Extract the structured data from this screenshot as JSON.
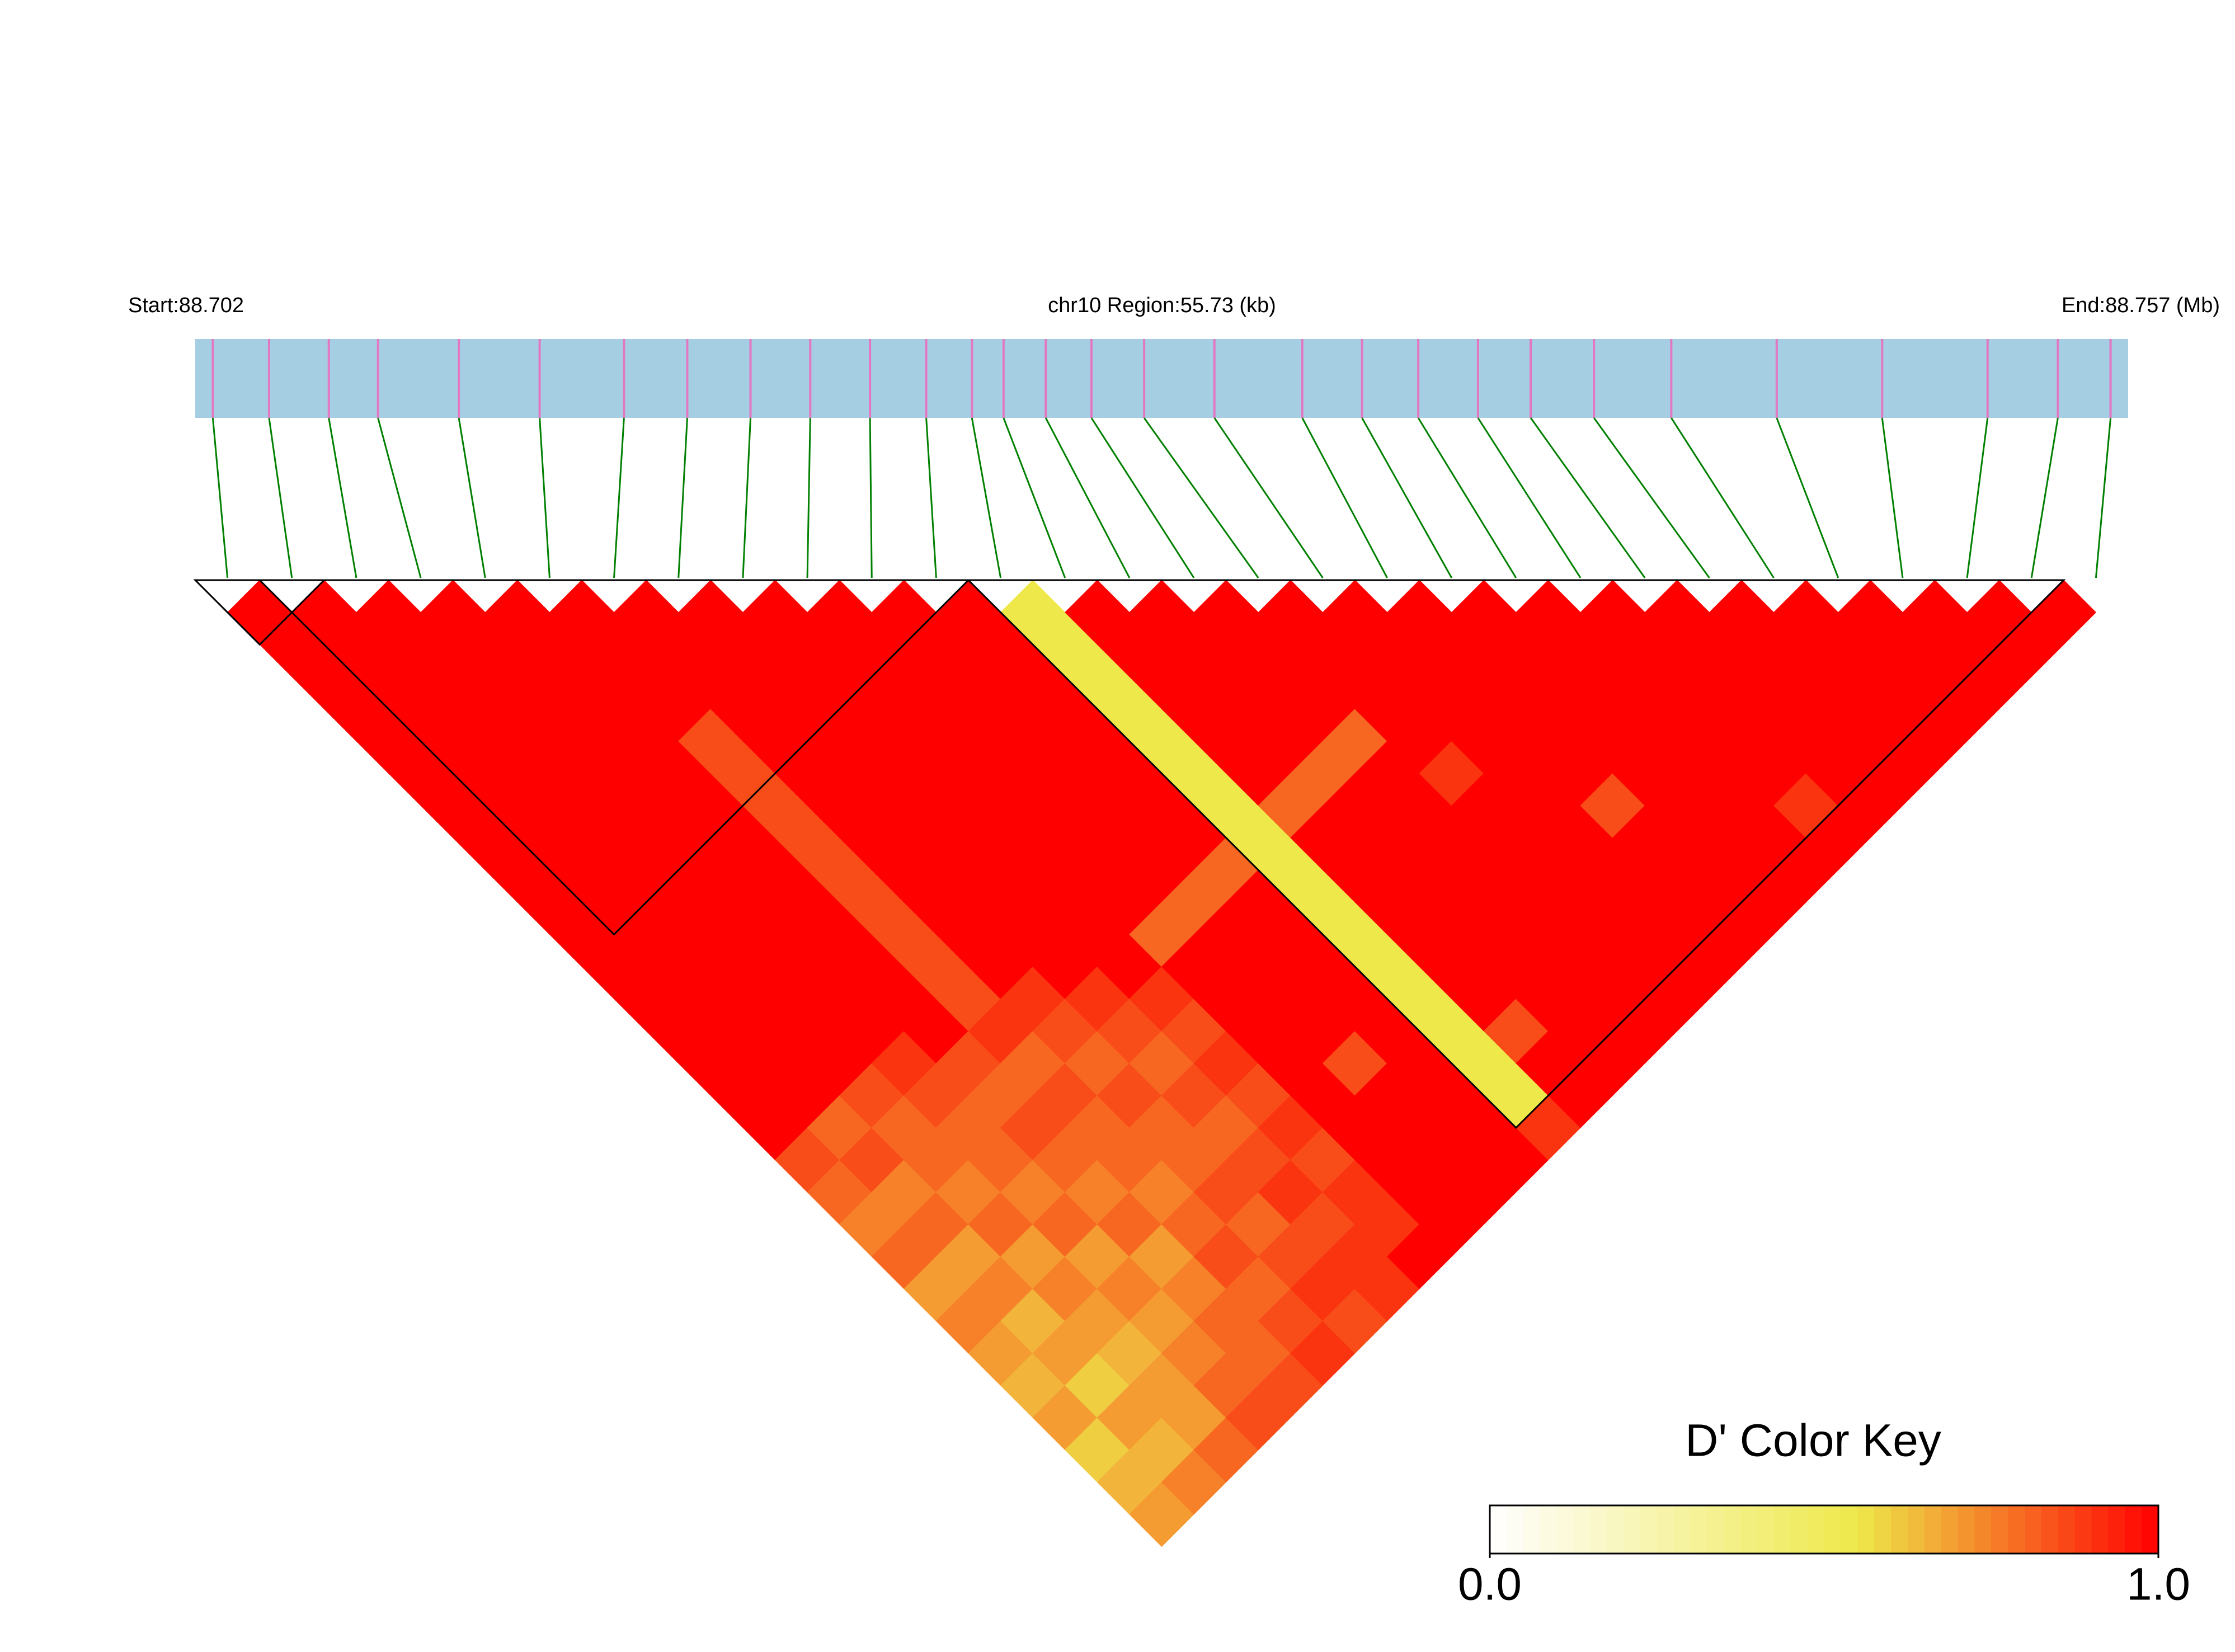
{
  "chart_data": {
    "type": "ld_heatmap",
    "title": "chr10 Region:55.73 (kb)",
    "xlim": [
      {
        "value": 88.702,
        "label": "Start:88.702"
      },
      {
        "value": 88.757,
        "label": "End:88.757 (Mb)"
      }
    ],
    "positions": [
      88.7025,
      88.7041,
      88.7058,
      88.7072,
      88.7095,
      88.7118,
      88.7142,
      88.716,
      88.7178,
      88.7195,
      88.7212,
      88.7228,
      88.7241,
      88.725,
      88.7262,
      88.7275,
      88.729,
      88.731,
      88.7335,
      88.7352,
      88.7368,
      88.7385,
      88.74,
      88.7418,
      88.744,
      88.747,
      88.75,
      88.753,
      88.755,
      88.7565
    ],
    "dprime": [
      [
        1,
        1,
        1,
        1,
        1,
        1,
        1,
        1,
        1,
        1,
        1,
        1,
        1,
        1,
        1,
        1,
        1,
        0.85,
        0.8,
        0.75,
        0.8,
        0.7,
        0.75,
        0.7,
        0.65,
        0.7,
        0.6,
        0.65,
        0.7
      ],
      [
        1,
        1,
        1,
        1,
        1,
        1,
        1,
        1,
        1,
        1,
        1,
        1,
        1,
        1,
        1,
        1,
        0.8,
        0.85,
        0.75,
        0.8,
        0.7,
        0.75,
        0.65,
        0.7,
        0.6,
        0.7,
        0.65,
        0.75
      ],
      [
        1,
        1,
        1,
        1,
        1,
        1,
        1,
        1,
        1,
        1,
        1,
        1,
        1,
        1,
        1,
        0.85,
        0.8,
        0.8,
        0.75,
        0.8,
        0.7,
        0.75,
        0.7,
        0.65,
        0.7,
        0.7,
        0.8
      ],
      [
        1,
        1,
        1,
        1,
        1,
        1,
        1,
        1,
        1,
        1,
        1,
        1,
        1,
        1,
        0.9,
        0.85,
        0.8,
        0.8,
        0.75,
        0.8,
        0.7,
        0.75,
        0.7,
        0.75,
        0.8,
        0.85
      ],
      [
        1,
        1,
        1,
        1,
        1,
        1,
        1,
        1,
        1,
        1,
        1,
        1,
        1,
        1,
        0.85,
        0.8,
        0.85,
        0.8,
        0.75,
        0.8,
        0.7,
        0.75,
        0.8,
        0.8,
        0.85
      ],
      [
        1,
        1,
        1,
        1,
        0.85,
        0.85,
        0.85,
        0.85,
        0.85,
        0.85,
        0.85,
        0.85,
        0.85,
        0.9,
        0.8,
        0.85,
        0.8,
        0.8,
        0.75,
        0.8,
        0.85,
        0.8,
        0.85,
        0.9
      ],
      [
        1,
        1,
        1,
        1,
        1,
        1,
        1,
        1,
        1,
        1,
        1,
        1,
        0.9,
        0.85,
        0.8,
        0.85,
        0.8,
        0.8,
        0.85,
        0.8,
        0.85,
        0.9,
        0.85
      ],
      [
        1,
        1,
        1,
        1,
        1,
        1,
        1,
        1,
        1,
        1,
        1,
        1,
        0.9,
        0.85,
        0.8,
        0.85,
        0.8,
        0.85,
        0.9,
        0.85,
        0.9,
        0.9
      ],
      [
        1,
        1,
        1,
        1,
        1,
        1,
        1,
        1,
        1,
        1,
        1,
        1,
        0.9,
        0.85,
        0.9,
        0.85,
        0.9,
        0.85,
        0.9,
        0.9,
        1
      ],
      [
        1,
        1,
        1,
        1,
        1,
        1,
        1,
        1,
        1,
        1,
        0.8,
        1,
        1,
        1,
        1,
        1,
        1,
        1,
        1,
        1
      ],
      [
        1,
        1,
        1,
        1,
        1,
        1,
        1,
        1,
        1,
        0.8,
        1,
        1,
        1,
        1,
        0.85,
        1,
        1,
        1,
        1
      ],
      [
        1,
        1,
        1,
        1,
        1,
        1,
        1,
        1,
        0.8,
        1,
        1,
        1,
        1,
        1,
        1,
        1,
        1,
        1
      ],
      [
        0.55,
        0.55,
        0.55,
        0.55,
        0.55,
        0.55,
        0.55,
        0.55,
        0.55,
        0.55,
        0.55,
        0.55,
        0.55,
        0.55,
        0.55,
        0.55,
        0.9
      ],
      [
        1,
        1,
        1,
        1,
        1,
        1,
        0.8,
        1,
        1,
        1,
        1,
        1,
        1,
        0.85,
        1,
        1
      ],
      [
        1,
        1,
        1,
        1,
        1,
        0.8,
        1,
        1,
        1,
        1,
        1,
        1,
        1,
        1,
        1
      ],
      [
        1,
        1,
        1,
        1,
        0.8,
        1,
        1,
        1,
        1,
        1,
        1,
        1,
        1,
        1
      ],
      [
        1,
        1,
        1,
        1,
        1,
        0.9,
        1,
        1,
        1,
        1,
        1,
        1,
        1
      ],
      [
        1,
        1,
        1,
        1,
        1,
        1,
        1,
        1,
        1,
        1,
        1,
        1
      ],
      [
        1,
        1,
        1,
        1,
        1,
        1,
        0.85,
        1,
        1,
        1,
        1
      ],
      [
        1,
        1,
        1,
        1,
        1,
        1,
        1,
        1,
        1,
        1
      ],
      [
        1,
        1,
        1,
        1,
        1,
        1,
        1,
        1,
        1
      ],
      [
        1,
        1,
        1,
        1,
        1,
        1,
        0.9,
        1
      ],
      [
        1,
        1,
        1,
        1,
        1,
        1,
        1
      ],
      [
        1,
        1,
        1,
        1,
        1,
        1
      ],
      [
        1,
        1,
        1,
        1,
        1
      ],
      [
        1,
        1,
        1,
        1
      ],
      [
        1,
        1,
        1
      ],
      [
        1,
        1
      ],
      [
        1
      ]
    ],
    "blocks": [
      [
        0,
        1
      ],
      [
        1,
        11
      ],
      [
        12,
        28
      ]
    ],
    "bar_color": "#a6cee3",
    "snp_color": "#e377c2",
    "link_color": "#008000",
    "colorbar": {
      "title": "D' Color Key",
      "ticks": [
        {
          "value": 0,
          "label": "0.0"
        },
        {
          "value": 1,
          "label": "1.0"
        }
      ],
      "stops": [
        0,
        0.55,
        1
      ],
      "colors": [
        "#ffffff",
        "#eee84a",
        "#ff0000"
      ]
    }
  }
}
